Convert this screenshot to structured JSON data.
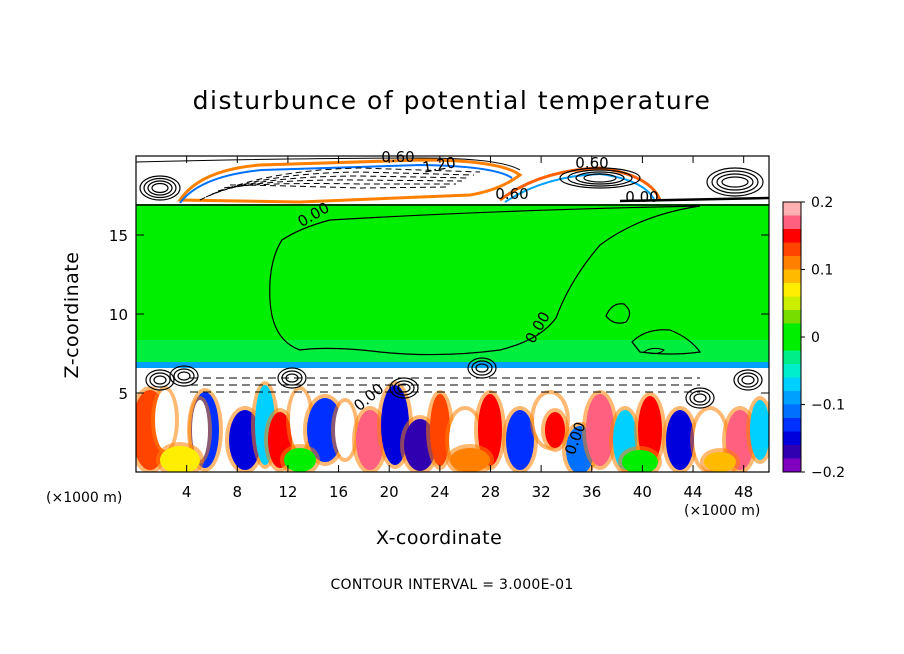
{
  "chart_data": {
    "type": "heatmap",
    "title": "disturbunce of potential temperature",
    "xlabel": "X-coordinate",
    "ylabel": "Z-coordinate",
    "x_unit_left": "(×1000 m)",
    "x_unit_right": "(×1000 m)",
    "footer": "CONTOUR INTERVAL = 3.000E-01",
    "xlim": [
      0,
      50
    ],
    "ylim": [
      0,
      20
    ],
    "x_ticks": [
      "4",
      "8",
      "12",
      "16",
      "20",
      "24",
      "28",
      "32",
      "36",
      "40",
      "44",
      "48"
    ],
    "y_ticks": [
      "5",
      "10",
      "15"
    ],
    "colorbar": {
      "range": [
        -0.2,
        0.2
      ],
      "tick_labels": [
        "0.2",
        "0.1",
        "0",
        "−0.1",
        "−0.2"
      ],
      "colors": [
        "#ffb0b0",
        "#ff6080",
        "#ff0000",
        "#ff4400",
        "#ff8000",
        "#ffbb00",
        "#ffee00",
        "#ccee00",
        "#77dd00",
        "#00ee00",
        "#00ee00",
        "#00ee88",
        "#00eecc",
        "#00d0ff",
        "#00a0ff",
        "#0070ff",
        "#0030ff",
        "#0000dd",
        "#3000b0",
        "#8000c0"
      ]
    },
    "contour_labels": [
      {
        "text": "0.60"
      },
      {
        "text": "1.20"
      },
      {
        "text": "0.60"
      },
      {
        "text": "0.60"
      },
      {
        "text": "0.00"
      },
      {
        "text": "0.00"
      },
      {
        "text": "0.00"
      },
      {
        "text": "0.00"
      },
      {
        "text": "0.00"
      }
    ]
  }
}
